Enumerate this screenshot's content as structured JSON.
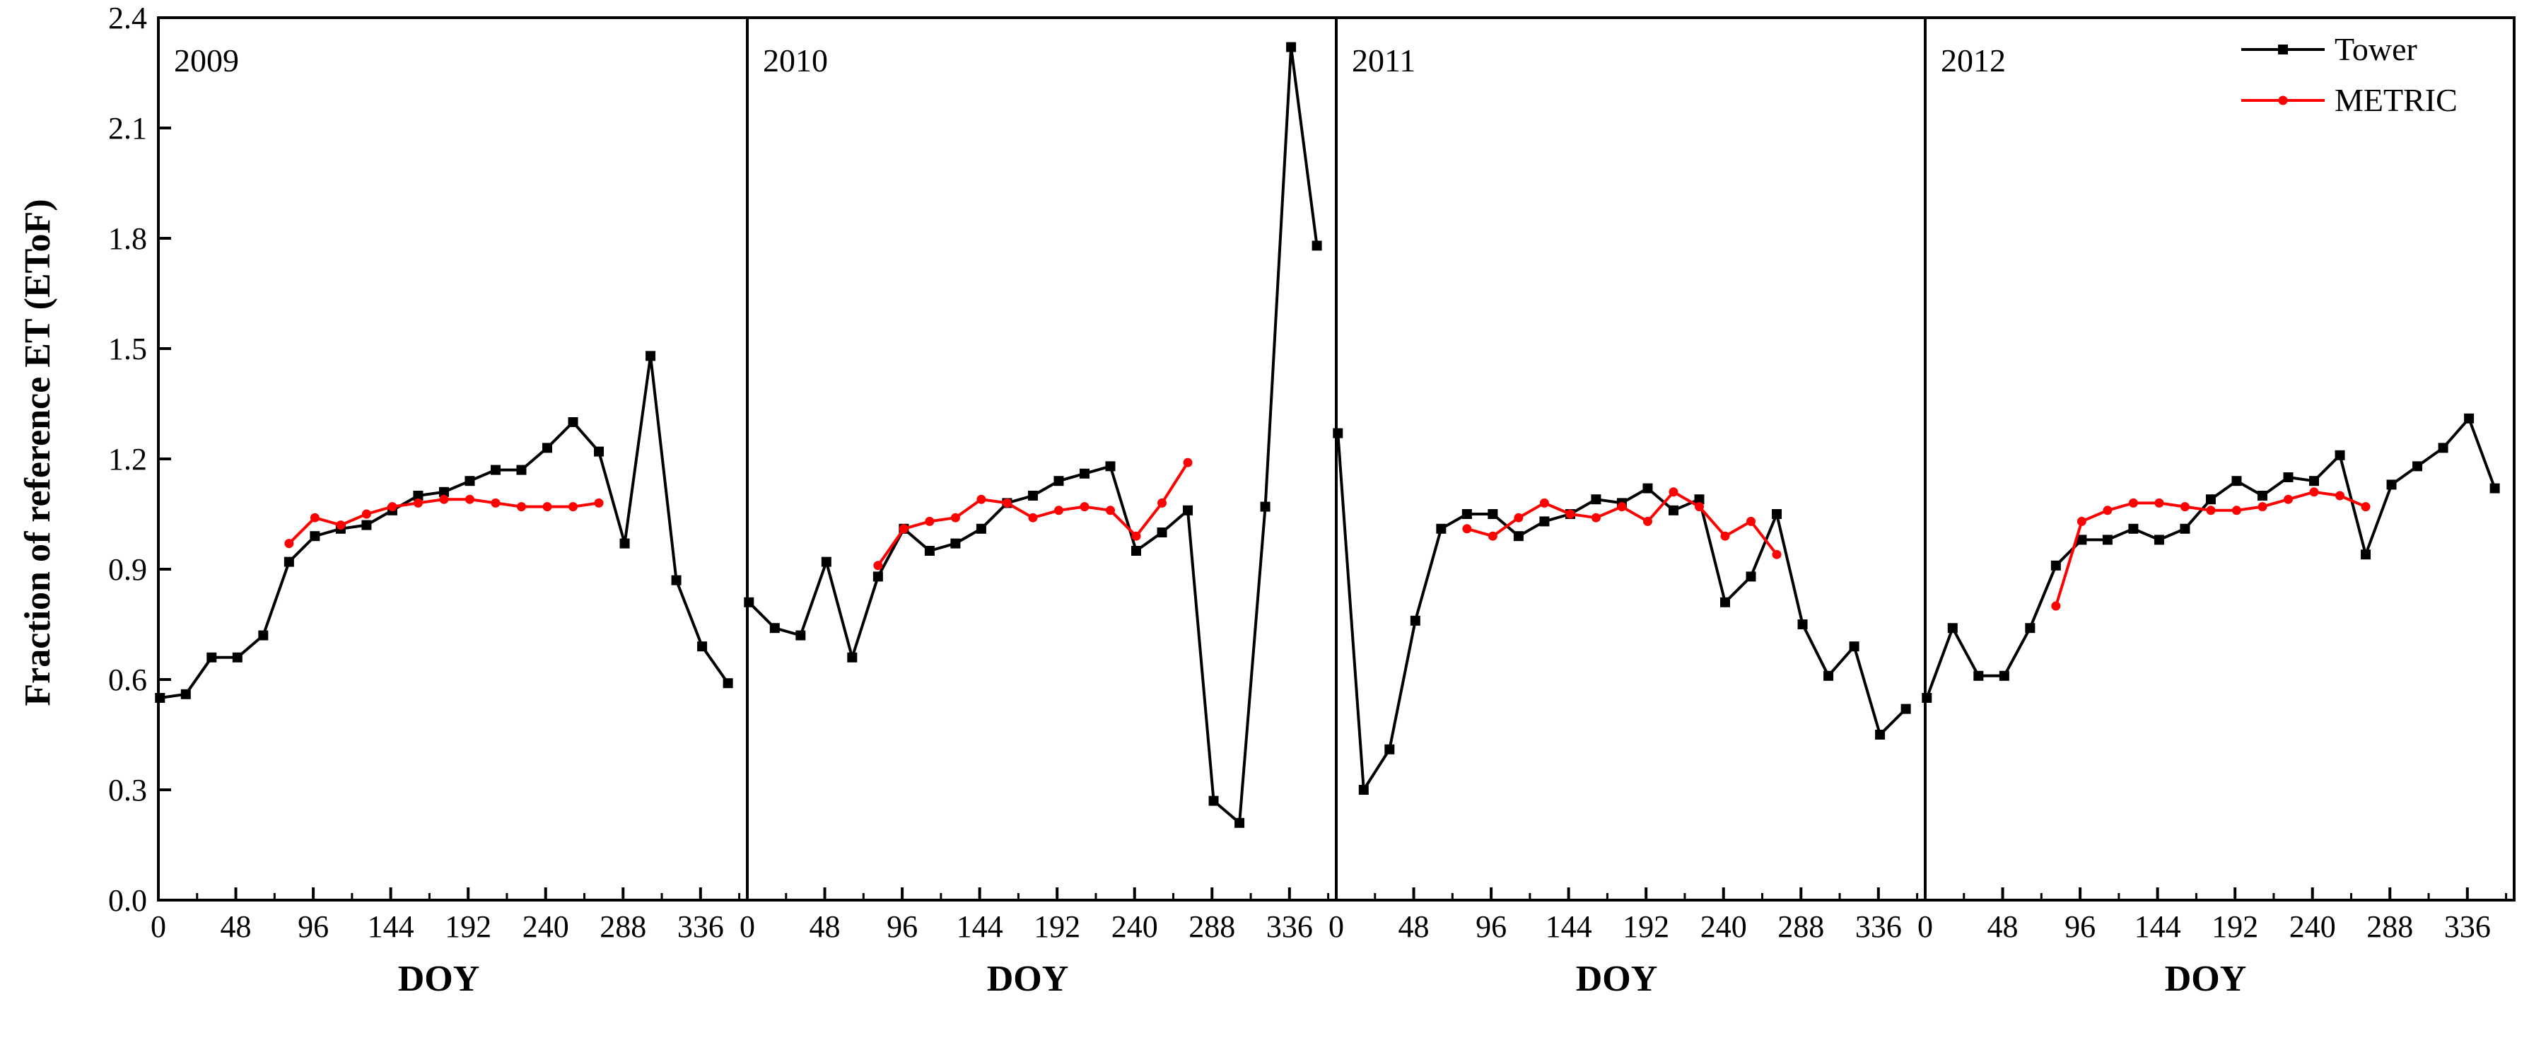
{
  "chart_data": {
    "type": "line",
    "ylabel": "Fraction of reference ET (EToF)",
    "xlabel": "DOY",
    "ylim": [
      0,
      2.4
    ],
    "yticks": [
      "0.0",
      "0.3",
      "0.6",
      "0.9",
      "1.2",
      "1.5",
      "1.8",
      "2.1",
      "2.4"
    ],
    "xlim": [
      0,
      365
    ],
    "xticks": [
      "0",
      "48",
      "96",
      "144",
      "192",
      "240",
      "288",
      "336"
    ],
    "legend": {
      "placement": "top-right",
      "entries": [
        "Tower",
        "METRIC"
      ]
    },
    "colors": {
      "Tower": "#000000",
      "METRIC": "#ff0000"
    },
    "panels": [
      {
        "label": "2009",
        "series": [
          {
            "name": "Tower",
            "x": [
              1,
              17,
              33,
              49,
              65,
              81,
              97,
              113,
              129,
              145,
              161,
              177,
              193,
              209,
              225,
              241,
              257,
              273,
              289,
              305,
              321,
              337,
              353
            ],
            "y": [
              0.55,
              0.56,
              0.66,
              0.66,
              0.72,
              0.92,
              0.99,
              1.01,
              1.02,
              1.06,
              1.1,
              1.11,
              1.14,
              1.17,
              1.17,
              1.23,
              1.3,
              1.22,
              0.97,
              1.48,
              0.87,
              0.69,
              0.59
            ]
          },
          {
            "name": "METRIC",
            "x": [
              81,
              97,
              113,
              129,
              145,
              161,
              177,
              193,
              209,
              225,
              241,
              257,
              273
            ],
            "y": [
              0.97,
              1.04,
              1.02,
              1.05,
              1.07,
              1.08,
              1.09,
              1.09,
              1.08,
              1.07,
              1.07,
              1.07,
              1.08
            ]
          }
        ]
      },
      {
        "label": "2010",
        "series": [
          {
            "name": "Tower",
            "x": [
              1,
              17,
              33,
              49,
              65,
              81,
              97,
              113,
              129,
              145,
              161,
              177,
              193,
              209,
              225,
              241,
              257,
              273,
              289,
              305,
              321,
              337,
              353
            ],
            "y": [
              0.81,
              0.74,
              0.72,
              0.92,
              0.66,
              0.88,
              1.01,
              0.95,
              0.97,
              1.01,
              1.08,
              1.1,
              1.14,
              1.16,
              1.18,
              0.95,
              1.0,
              1.06,
              0.27,
              0.21,
              1.07,
              2.32,
              1.78
            ]
          },
          {
            "name": "METRIC",
            "x": [
              81,
              97,
              113,
              129,
              145,
              161,
              177,
              193,
              209,
              225,
              241,
              257,
              273
            ],
            "y": [
              0.91,
              1.01,
              1.03,
              1.04,
              1.09,
              1.08,
              1.04,
              1.06,
              1.07,
              1.06,
              0.99,
              1.08,
              1.19
            ]
          }
        ]
      },
      {
        "label": "2011",
        "series": [
          {
            "name": "Tower",
            "x": [
              1,
              17,
              33,
              49,
              65,
              81,
              97,
              113,
              129,
              145,
              161,
              177,
              193,
              209,
              225,
              241,
              257,
              273,
              289,
              305,
              321,
              337,
              353
            ],
            "y": [
              1.27,
              0.3,
              0.41,
              0.76,
              1.01,
              1.05,
              1.05,
              0.99,
              1.03,
              1.05,
              1.09,
              1.08,
              1.12,
              1.06,
              1.09,
              0.81,
              0.88,
              1.05,
              0.75,
              0.61,
              0.69,
              0.45,
              0.52
            ]
          },
          {
            "name": "METRIC",
            "x": [
              81,
              97,
              113,
              129,
              145,
              161,
              177,
              193,
              209,
              225,
              241,
              257,
              273
            ],
            "y": [
              1.01,
              0.99,
              1.04,
              1.08,
              1.05,
              1.04,
              1.07,
              1.03,
              1.11,
              1.07,
              0.99,
              1.03,
              0.94
            ]
          }
        ]
      },
      {
        "label": "2012",
        "series": [
          {
            "name": "Tower",
            "x": [
              1,
              17,
              33,
              49,
              65,
              81,
              97,
              113,
              129,
              145,
              161,
              177,
              193,
              209,
              225,
              241,
              257,
              273,
              289,
              305,
              321,
              337,
              353
            ],
            "y": [
              0.55,
              0.74,
              0.61,
              0.61,
              0.74,
              0.91,
              0.98,
              0.98,
              1.01,
              0.98,
              1.01,
              1.09,
              1.14,
              1.1,
              1.15,
              1.14,
              1.21,
              0.94,
              1.13,
              1.18,
              1.23,
              1.31,
              1.12
            ]
          },
          {
            "name": "METRIC",
            "x": [
              81,
              97,
              113,
              129,
              145,
              161,
              177,
              193,
              209,
              225,
              241,
              257,
              273
            ],
            "y": [
              0.8,
              1.03,
              1.06,
              1.08,
              1.08,
              1.07,
              1.06,
              1.06,
              1.07,
              1.09,
              1.11,
              1.1,
              1.07
            ]
          }
        ]
      }
    ]
  }
}
